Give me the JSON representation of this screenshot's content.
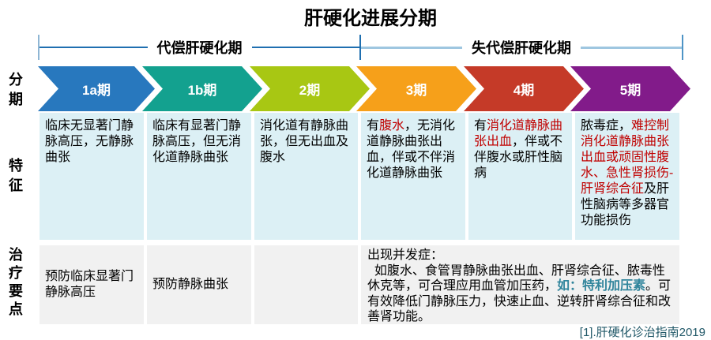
{
  "title": "肝硬化进展分期",
  "footer": "[1].肝硬化诊治指南2019",
  "row_labels": {
    "staging": "分期",
    "features": "特征",
    "treatment": "治疗要点"
  },
  "brackets": [
    {
      "label": "代偿肝硬化期",
      "covers_stages": [
        "1a期",
        "1b期",
        "2期"
      ]
    },
    {
      "label": "失代偿肝硬化期",
      "covers_stages": [
        "3期",
        "4期",
        "5期"
      ]
    }
  ],
  "bracket_colors": {
    "line_dark": "#1F6FB0",
    "line_light": "#9EC6E0",
    "tick_start": "#8FB6D4",
    "tick_mid": "#1F6FB0",
    "tick_end": "#4E94C6"
  },
  "highlight_colors": {
    "red": "#C00000",
    "teal": "#31859C"
  },
  "stages": [
    {
      "label": "1a期",
      "color": "#2878BE",
      "feature_segments": [
        {
          "text": "临床无显著门静脉高压，无静脉曲张"
        }
      ]
    },
    {
      "label": "1b期",
      "color": "#13A18F",
      "feature_segments": [
        {
          "text": "临床有显著门静脉高压，但无消化道静脉曲张"
        }
      ]
    },
    {
      "label": "2期",
      "color": "#A8C713",
      "feature_segments": [
        {
          "text": "消化道有静脉曲张，但无出血及腹水"
        }
      ]
    },
    {
      "label": "3期",
      "color": "#F6A01A",
      "feature_segments": [
        {
          "text": "有"
        },
        {
          "text": "腹水",
          "color": "#C00000"
        },
        {
          "text": "，无消化道静脉曲张出血，伴或不伴消化道静脉曲张"
        }
      ]
    },
    {
      "label": "4期",
      "color": "#C53A28",
      "feature_segments": [
        {
          "text": "有"
        },
        {
          "text": "消化道静脉曲张出血",
          "color": "#C00000"
        },
        {
          "text": "，伴或不伴腹水或肝性脑病"
        }
      ]
    },
    {
      "label": "5期",
      "color": "#821B8A",
      "feature_segments": [
        {
          "text": "脓毒症，"
        },
        {
          "text": "难控制消化道静脉曲张出血或顽固性腹水、急性肾损伤-肝肾综合征",
          "color": "#C00000"
        },
        {
          "text": "及肝性脑病等多器官功能损伤"
        }
      ]
    }
  ],
  "treatments": {
    "stage_1a": "预防临床显著门静脉高压",
    "stage_1b": "预防静脉曲张",
    "stage_2": "",
    "stages_3_to_5_segments": [
      {
        "text": "出现并发症：\n  如腹水、食管胃静脉曲张出血、肝肾综合征、脓毒性休克等，可合理应用血管加压药，"
      },
      {
        "text": "如：特利加压素",
        "color": "#31859C",
        "bold": true
      },
      {
        "text": "。可有效降低门静脉压力，快速止血、逆转肝肾综合征和改善肾功能。"
      }
    ]
  }
}
